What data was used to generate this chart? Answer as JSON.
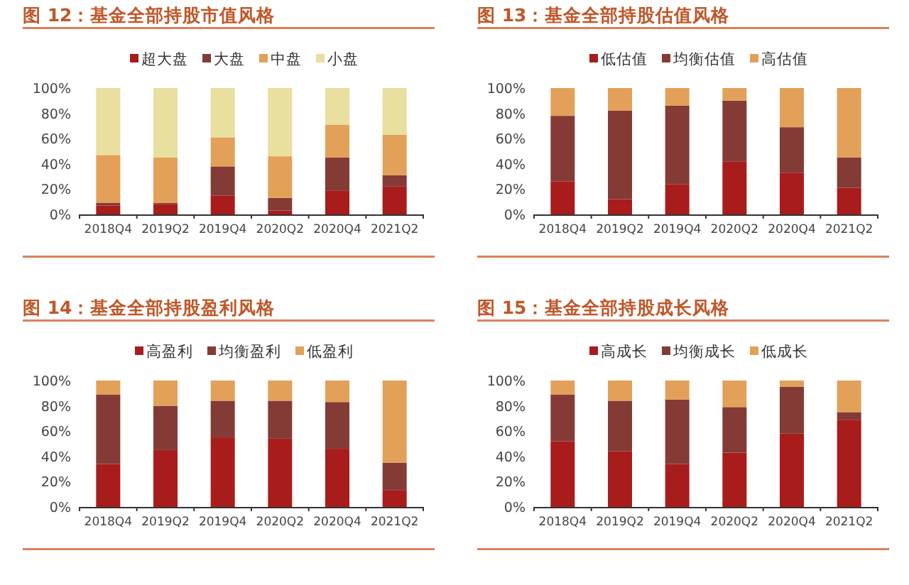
{
  "chart_data": [
    {
      "type": "bar",
      "title": "图 12：基金全部持股市值风格",
      "stacked": true,
      "legend": "top",
      "ylim": [
        0,
        100
      ],
      "yticks": [
        {
          "value": 0,
          "label": "0%"
        },
        {
          "value": 20,
          "label": "20%"
        },
        {
          "value": 40,
          "label": "40%"
        },
        {
          "value": 60,
          "label": "60%"
        },
        {
          "value": 80,
          "label": "80%"
        },
        {
          "value": 100,
          "label": "100%"
        }
      ],
      "categories": [
        "2018Q4",
        "2019Q2",
        "2019Q4",
        "2020Q2",
        "2020Q4",
        "2021Q2"
      ],
      "series": [
        {
          "name": "超大盘",
          "color": "#a81c1c",
          "values": [
            7,
            8,
            15,
            3,
            19,
            22
          ]
        },
        {
          "name": "大盘",
          "color": "#843a35",
          "values": [
            2,
            1,
            23,
            10,
            26,
            9
          ]
        },
        {
          "name": "中盘",
          "color": "#e3a058",
          "values": [
            38,
            36,
            23,
            33,
            26,
            32
          ]
        },
        {
          "name": "小盘",
          "color": "#e9df9e",
          "values": [
            53,
            55,
            39,
            54,
            29,
            37
          ]
        }
      ]
    },
    {
      "type": "bar",
      "title": "图 13：基金全部持股估值风格",
      "stacked": true,
      "legend": "top",
      "ylim": [
        0,
        100
      ],
      "yticks": [
        {
          "value": 0,
          "label": "0%"
        },
        {
          "value": 20,
          "label": "20%"
        },
        {
          "value": 40,
          "label": "40%"
        },
        {
          "value": 60,
          "label": "60%"
        },
        {
          "value": 80,
          "label": "80%"
        },
        {
          "value": 100,
          "label": "100%"
        }
      ],
      "categories": [
        "2018Q4",
        "2019Q2",
        "2019Q4",
        "2020Q2",
        "2020Q4",
        "2021Q2"
      ],
      "series": [
        {
          "name": "低估值",
          "color": "#a81c1c",
          "values": [
            26,
            12,
            24,
            42,
            33,
            21
          ]
        },
        {
          "name": "均衡估值",
          "color": "#843a35",
          "values": [
            52,
            70,
            62,
            48,
            36,
            24
          ]
        },
        {
          "name": "高估值",
          "color": "#e3a058",
          "values": [
            22,
            18,
            14,
            10,
            31,
            55
          ]
        }
      ]
    },
    {
      "type": "bar",
      "title": "图 14：基金全部持股盈利风格",
      "stacked": true,
      "legend": "top",
      "ylim": [
        0,
        100
      ],
      "yticks": [
        {
          "value": 0,
          "label": "0%"
        },
        {
          "value": 20,
          "label": "20%"
        },
        {
          "value": 40,
          "label": "40%"
        },
        {
          "value": 60,
          "label": "60%"
        },
        {
          "value": 80,
          "label": "80%"
        },
        {
          "value": 100,
          "label": "100%"
        }
      ],
      "categories": [
        "2018Q4",
        "2019Q2",
        "2019Q4",
        "2020Q2",
        "2020Q4",
        "2021Q2"
      ],
      "series": [
        {
          "name": "高盈利",
          "color": "#a81c1c",
          "values": [
            34,
            45,
            55,
            54,
            46,
            13
          ]
        },
        {
          "name": "均衡盈利",
          "color": "#843a35",
          "values": [
            55,
            35,
            29,
            30,
            37,
            22
          ]
        },
        {
          "name": "低盈利",
          "color": "#e3a058",
          "values": [
            11,
            20,
            16,
            16,
            17,
            65
          ]
        }
      ]
    },
    {
      "type": "bar",
      "title": "图 15：基金全部持股成长风格",
      "stacked": true,
      "legend": "top",
      "ylim": [
        0,
        100
      ],
      "yticks": [
        {
          "value": 0,
          "label": "0%"
        },
        {
          "value": 20,
          "label": "20%"
        },
        {
          "value": 40,
          "label": "40%"
        },
        {
          "value": 60,
          "label": "60%"
        },
        {
          "value": 80,
          "label": "80%"
        },
        {
          "value": 100,
          "label": "100%"
        }
      ],
      "categories": [
        "2018Q4",
        "2019Q2",
        "2019Q4",
        "2020Q2",
        "2020Q4",
        "2021Q2"
      ],
      "series": [
        {
          "name": "高成长",
          "color": "#a81c1c",
          "values": [
            52,
            44,
            34,
            43,
            58,
            69
          ]
        },
        {
          "name": "均衡成长",
          "color": "#843a35",
          "values": [
            37,
            40,
            51,
            36,
            37,
            6
          ]
        },
        {
          "name": "低成长",
          "color": "#e3a058",
          "values": [
            11,
            16,
            15,
            21,
            5,
            25
          ]
        }
      ]
    }
  ]
}
